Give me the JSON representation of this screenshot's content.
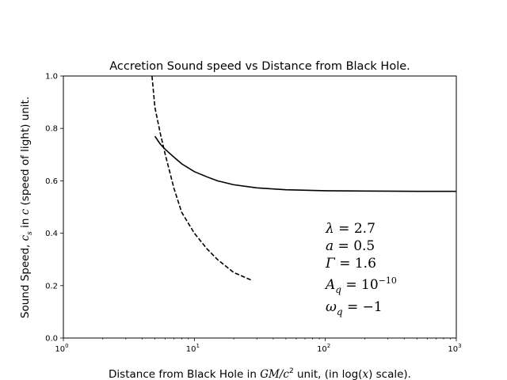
{
  "chart_data": {
    "type": "line",
    "title": "Accretion Sound speed vs Distance from Black Hole.",
    "xlabel": {
      "prefix": "Distance from Black Hole in ",
      "unit_main": "GM/c",
      "unit_exp": "2",
      "middle": " unit, (in log(",
      "var": "x",
      "suffix": ") scale)."
    },
    "ylabel": {
      "prefix": "Sound Speed, ",
      "sym": "c",
      "sym_sub": "s",
      "middle": " in ",
      "sym2": "c",
      "suffix": " (speed of light) unit."
    },
    "xscale": "log",
    "xlim": [
      1,
      1000
    ],
    "ylim": [
      0.0,
      1.0
    ],
    "grid": false,
    "x_ticks": [
      {
        "value": 1,
        "base": "10",
        "exp": "0"
      },
      {
        "value": 10,
        "base": "10",
        "exp": "1"
      },
      {
        "value": 100,
        "base": "10",
        "exp": "2"
      },
      {
        "value": 1000,
        "base": "10",
        "exp": "3"
      }
    ],
    "y_ticks": [
      {
        "value": 0.0,
        "label": "0.0"
      },
      {
        "value": 0.2,
        "label": "0.2"
      },
      {
        "value": 0.4,
        "label": "0.4"
      },
      {
        "value": 0.6,
        "label": "0.6"
      },
      {
        "value": 0.8,
        "label": "0.8"
      },
      {
        "value": 1.0,
        "label": "1.0"
      }
    ],
    "series": [
      {
        "style": "solid",
        "color": "#000000",
        "x": [
          5.0,
          5.5,
          6.0,
          7.0,
          8.0,
          10.0,
          12.5,
          15.0,
          20.0,
          30.0,
          50.0,
          100.0,
          200.0,
          500.0,
          1000.0
        ],
        "y": [
          0.77,
          0.74,
          0.72,
          0.69,
          0.665,
          0.635,
          0.615,
          0.6,
          0.585,
          0.573,
          0.566,
          0.562,
          0.561,
          0.56,
          0.56
        ]
      },
      {
        "style": "dashed",
        "color": "#000000",
        "x": [
          4.75,
          5.0,
          5.5,
          6.0,
          7.0,
          8.0,
          10.0,
          12.5,
          15.0,
          20.0,
          27.5
        ],
        "y": [
          1.0,
          0.88,
          0.78,
          0.7,
          0.57,
          0.48,
          0.4,
          0.34,
          0.3,
          0.25,
          0.22
        ]
      }
    ],
    "annotations": [
      {
        "sym": "λ",
        "sub": "",
        "op": " = ",
        "val": "2.7",
        "exp": ""
      },
      {
        "sym": "a",
        "sub": "",
        "op": " = ",
        "val": "0.5",
        "exp": ""
      },
      {
        "sym": "Γ",
        "sub": "",
        "op": " = ",
        "val": "1.6",
        "exp": ""
      },
      {
        "sym": "A",
        "sub": "q",
        "op": " = ",
        "val": "10",
        "exp": "−10"
      },
      {
        "sym": "ω",
        "sub": "q",
        "op": " = ",
        "val": "−1",
        "exp": ""
      }
    ]
  }
}
